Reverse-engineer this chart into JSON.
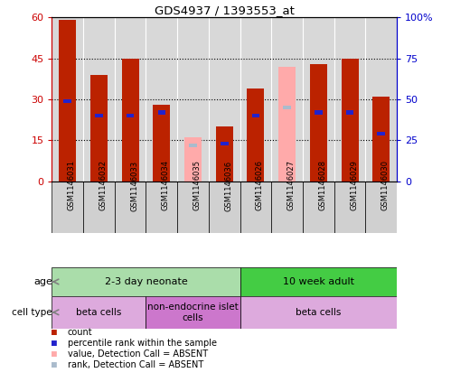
{
  "title": "GDS4937 / 1393553_at",
  "samples": [
    "GSM1146031",
    "GSM1146032",
    "GSM1146033",
    "GSM1146034",
    "GSM1146035",
    "GSM1146036",
    "GSM1146026",
    "GSM1146027",
    "GSM1146028",
    "GSM1146029",
    "GSM1146030"
  ],
  "count_values": [
    59,
    39,
    45,
    28,
    0,
    20,
    34,
    0,
    43,
    45,
    31
  ],
  "rank_pct": [
    49,
    40,
    40,
    42,
    0,
    23,
    40,
    0,
    42,
    42,
    29
  ],
  "absent_count": [
    0,
    0,
    0,
    0,
    16,
    0,
    0,
    42,
    0,
    0,
    0
  ],
  "absent_rank_pct": [
    0,
    0,
    0,
    0,
    22,
    0,
    0,
    45,
    0,
    0,
    0
  ],
  "count_color": "#bb2200",
  "rank_color": "#2222cc",
  "absent_count_color": "#ffaaaa",
  "absent_rank_color": "#aabbcc",
  "ylim_left": [
    0,
    60
  ],
  "ylim_right": [
    0,
    100
  ],
  "yticks_left": [
    0,
    15,
    30,
    45,
    60
  ],
  "yticks_right": [
    0,
    25,
    50,
    75,
    100
  ],
  "ytick_labels_left": [
    "0",
    "15",
    "30",
    "45",
    "60"
  ],
  "ytick_labels_right": [
    "0",
    "25",
    "50",
    "75",
    "100%"
  ],
  "age_groups": [
    {
      "label": "2-3 day neonate",
      "start": 0,
      "end": 6,
      "color": "#aaddaa"
    },
    {
      "label": "10 week adult",
      "start": 6,
      "end": 11,
      "color": "#44cc44"
    }
  ],
  "cell_type_groups": [
    {
      "label": "beta cells",
      "start": 0,
      "end": 3,
      "color": "#ddaadd"
    },
    {
      "label": "non-endocrine islet\ncells",
      "start": 3,
      "end": 6,
      "color": "#cc77cc"
    },
    {
      "label": "beta cells",
      "start": 6,
      "end": 11,
      "color": "#ddaadd"
    }
  ],
  "bar_width": 0.55,
  "background_color": "#ffffff",
  "plot_bg_color": "#d8d8d8",
  "left_axis_color": "#cc0000",
  "right_axis_color": "#0000cc",
  "legend_items": [
    {
      "color": "#bb2200",
      "label": "count"
    },
    {
      "color": "#2222cc",
      "label": "percentile rank within the sample"
    },
    {
      "color": "#ffaaaa",
      "label": "value, Detection Call = ABSENT"
    },
    {
      "color": "#aabbcc",
      "label": "rank, Detection Call = ABSENT"
    }
  ]
}
